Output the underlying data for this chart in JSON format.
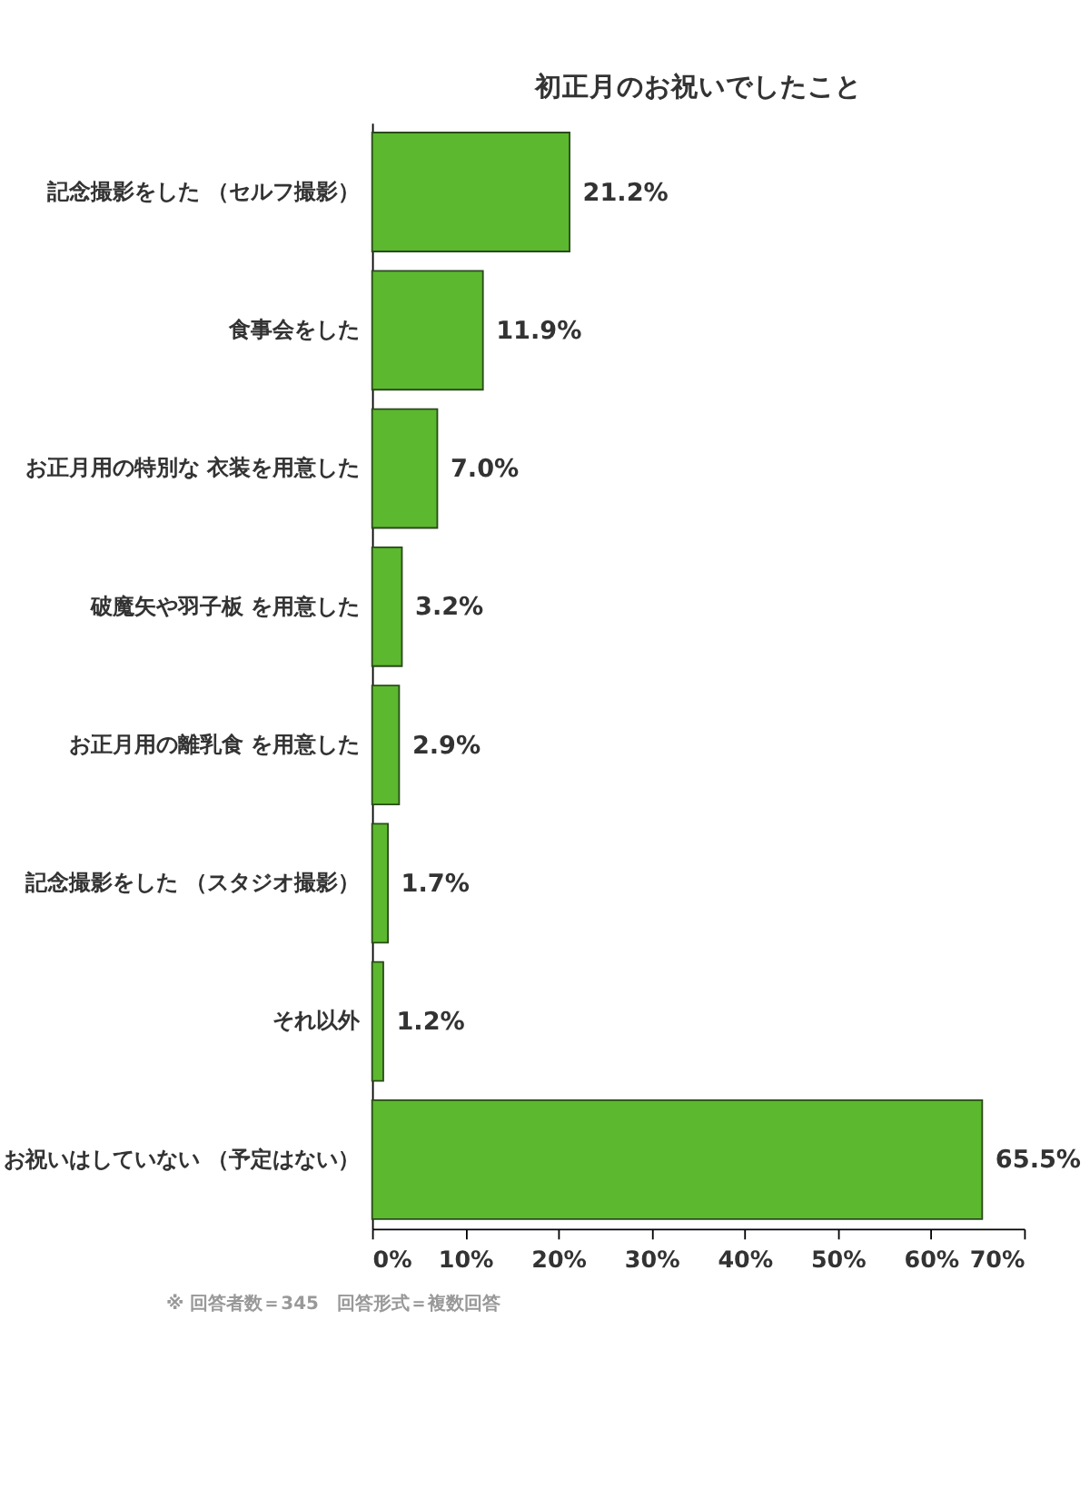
{
  "chart_data": {
    "type": "bar",
    "orientation": "horizontal",
    "title": "初正月のお祝いでしたこと",
    "categories": [
      "記念撮影をした\n（セルフ撮影）",
      "食事会をした",
      "お正月用の特別な\n衣装を用意した",
      "破魔矢や羽子板\nを用意した",
      "お正月用の離乳食\nを用意した",
      "記念撮影をした\n（スタジオ撮影）",
      "それ以外",
      "お祝いはしていない\n（予定はない）"
    ],
    "values": [
      21.2,
      11.9,
      7.0,
      3.2,
      2.9,
      1.7,
      1.2,
      65.5
    ],
    "value_labels": [
      "21.2%",
      "11.9%",
      "7.0%",
      "3.2%",
      "2.9%",
      "1.7%",
      "1.2%",
      "65.5%"
    ],
    "color": "#5cb82f",
    "xlim": [
      0,
      70
    ],
    "xticks": [
      {
        "value": 0,
        "label": "0%"
      },
      {
        "value": 10,
        "label": "10%"
      },
      {
        "value": 20,
        "label": "20%"
      },
      {
        "value": 30,
        "label": "30%"
      },
      {
        "value": 40,
        "label": "40%"
      },
      {
        "value": 50,
        "label": "50%"
      },
      {
        "value": 60,
        "label": "60%"
      },
      {
        "value": 70,
        "label": "70%"
      }
    ],
    "grid": false,
    "annotations": [
      "※ 回答者数＝345　回答形式＝複数回答"
    ]
  }
}
